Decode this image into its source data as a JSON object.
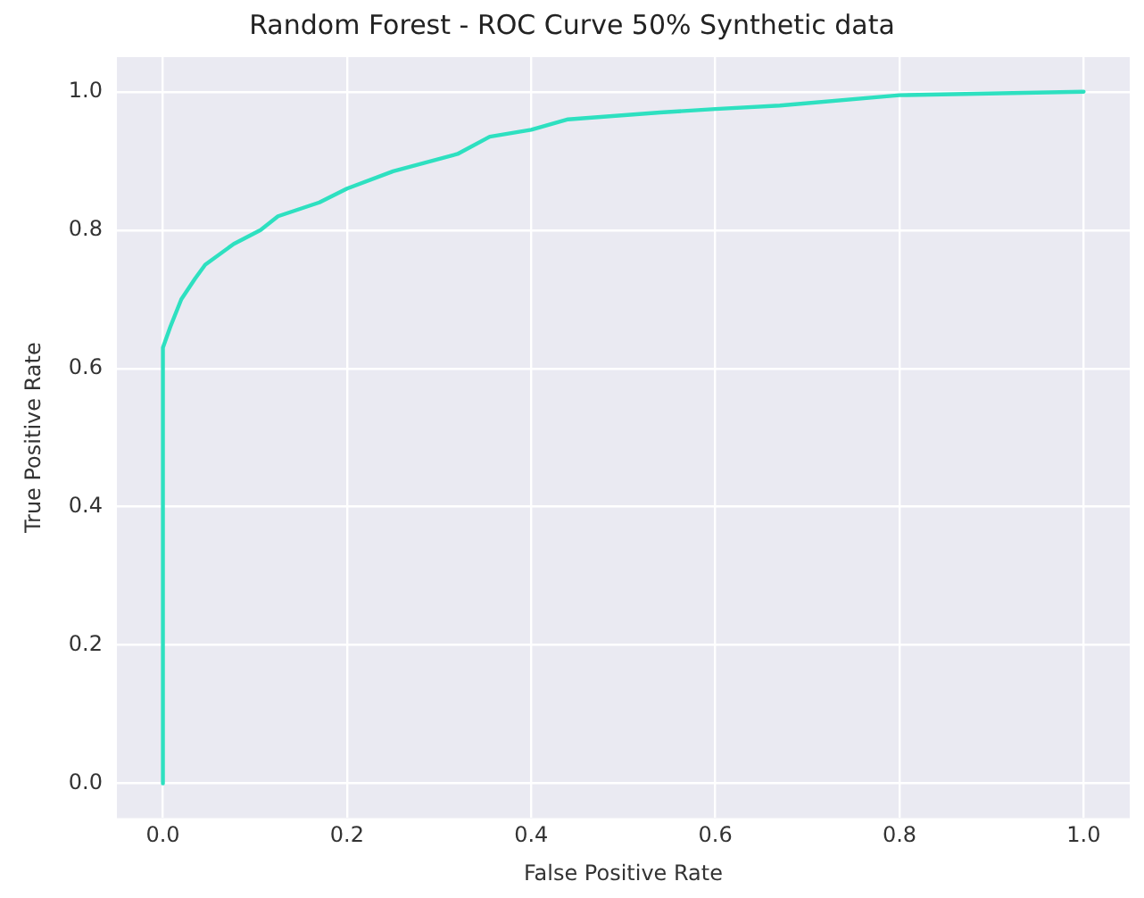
{
  "chart_data": {
    "type": "line",
    "title": "Random Forest - ROC Curve 50% Synthetic data",
    "xlabel": "False Positive Rate",
    "ylabel": "True Positive Rate",
    "series": [
      {
        "color": "#2ee0c0",
        "x": [
          0,
          0,
          0.008,
          0.02,
          0.035,
          0.046,
          0.077,
          0.106,
          0.125,
          0.17,
          0.2,
          0.25,
          0.32,
          0.355,
          0.4,
          0.44,
          0.54,
          0.6,
          0.67,
          0.8,
          1
        ],
        "values": [
          0,
          0.63,
          0.66,
          0.7,
          0.73,
          0.75,
          0.78,
          0.8,
          0.82,
          0.84,
          0.86,
          0.885,
          0.91,
          0.935,
          0.945,
          0.96,
          0.97,
          0.975,
          0.98,
          0.995,
          1
        ]
      }
    ],
    "xlim": [
      -0.05,
      1.05
    ],
    "ylim": [
      -0.05,
      1.05
    ],
    "xticks": [
      {
        "value": 0,
        "label": "0.0"
      },
      {
        "value": 0.2,
        "label": "0.2"
      },
      {
        "value": 0.4,
        "label": "0.4"
      },
      {
        "value": 0.6,
        "label": "0.6"
      },
      {
        "value": 0.8,
        "label": "0.8"
      },
      {
        "value": 1,
        "label": "1.0"
      }
    ],
    "yticks": [
      {
        "value": 0,
        "label": "0.0"
      },
      {
        "value": 0.2,
        "label": "0.2"
      },
      {
        "value": 0.4,
        "label": "0.4"
      },
      {
        "value": 0.6,
        "label": "0.6"
      },
      {
        "value": 0.8,
        "label": "0.8"
      },
      {
        "value": 1,
        "label": "1.0"
      }
    ],
    "grid": true,
    "marker": "none",
    "line_style": "solid",
    "legend": false
  }
}
